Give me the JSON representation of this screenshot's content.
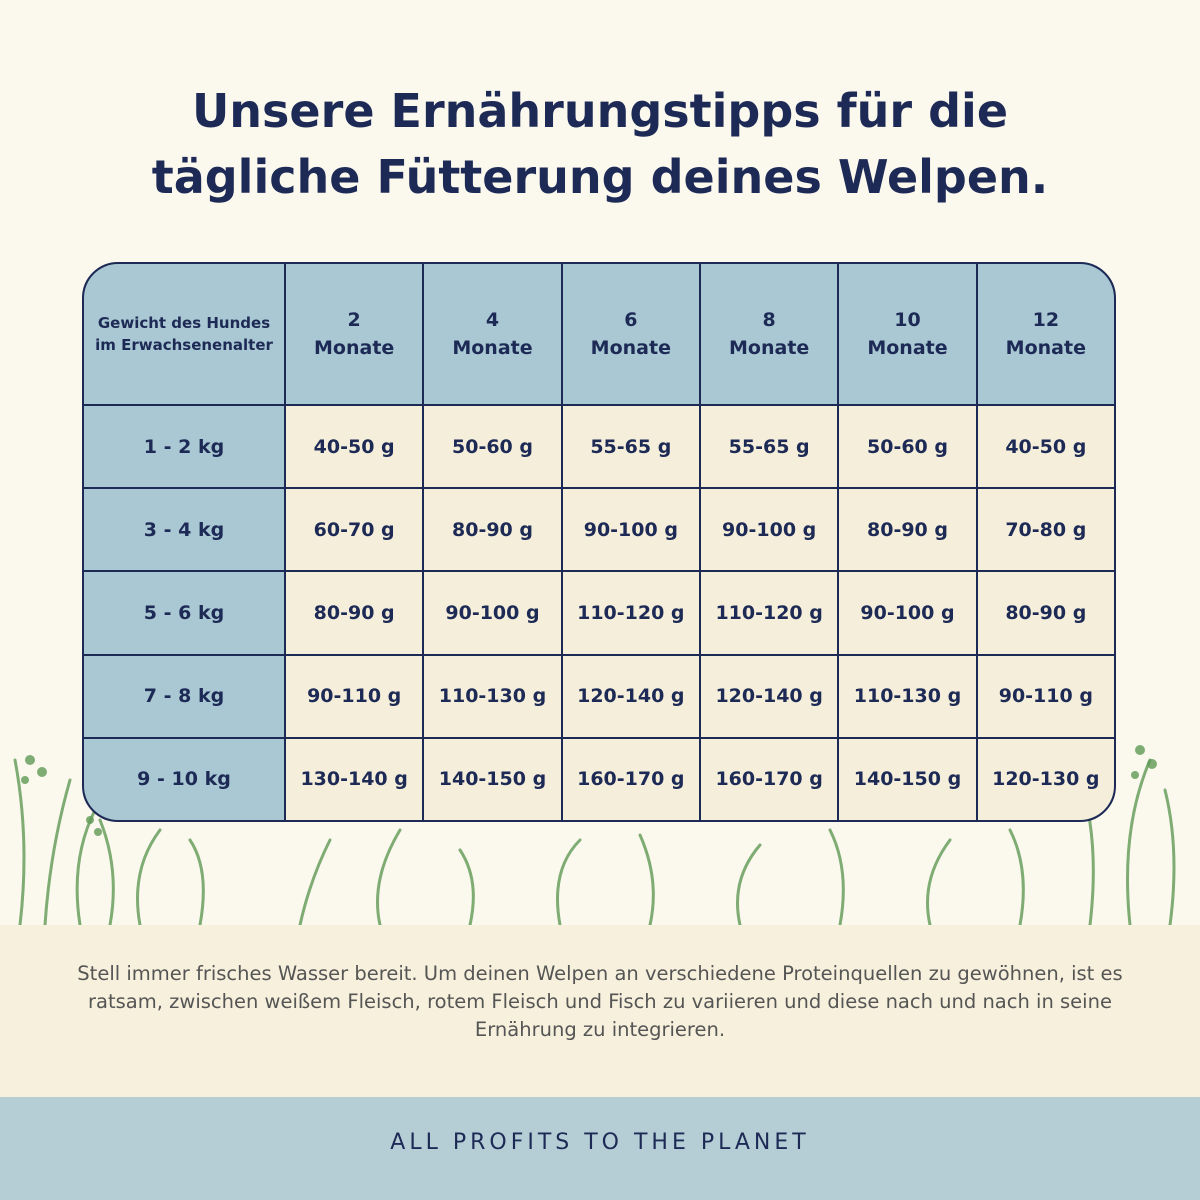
{
  "header": {
    "title_lines": [
      "Unsere Ernährungstipps für die",
      "tägliche Fütterung deines Welpen."
    ]
  },
  "table": {
    "corner": "Gewicht des Hundes im Erwachsenenalter",
    "columns": [
      {
        "number": "2",
        "unit": "Monate"
      },
      {
        "number": "4",
        "unit": "Monate"
      },
      {
        "number": "6",
        "unit": "Monate"
      },
      {
        "number": "8",
        "unit": "Monate"
      },
      {
        "number": "10",
        "unit": "Monate"
      },
      {
        "number": "12",
        "unit": "Monate"
      }
    ],
    "rows": [
      [
        "1 - 2 kg",
        "40-50 g",
        "50-60 g",
        "55-65 g",
        "55-65 g",
        "50-60 g",
        "40-50 g"
      ],
      [
        "3 - 4 kg",
        "60-70 g",
        "80-90 g",
        "90-100 g",
        "90-100 g",
        "80-90 g",
        "70-80 g"
      ],
      [
        "5 - 6 kg",
        "80-90 g",
        "90-100 g",
        "110-120 g",
        "110-120 g",
        "90-100 g",
        "80-90 g"
      ],
      [
        "7 - 8 kg",
        "90-110 g",
        "110-130 g",
        "120-140 g",
        "120-140 g",
        "110-130 g",
        "90-110 g"
      ],
      [
        "9 - 10 kg",
        "130-140 g",
        "140-150 g",
        "160-170 g",
        "160-170 g",
        "140-150 g",
        "120-130 g"
      ]
    ]
  },
  "note": "Stell immer frisches Wasser bereit. Um deinen Welpen an verschiedene Proteinquellen zu gewöhnen, ist es ratsam, zwischen weißem Fleisch, rotem Fleisch und Fisch zu variieren und diese nach und nach in seine Ernährung zu integrieren.",
  "footer": "ALL PROFITS TO THE PLANET"
}
